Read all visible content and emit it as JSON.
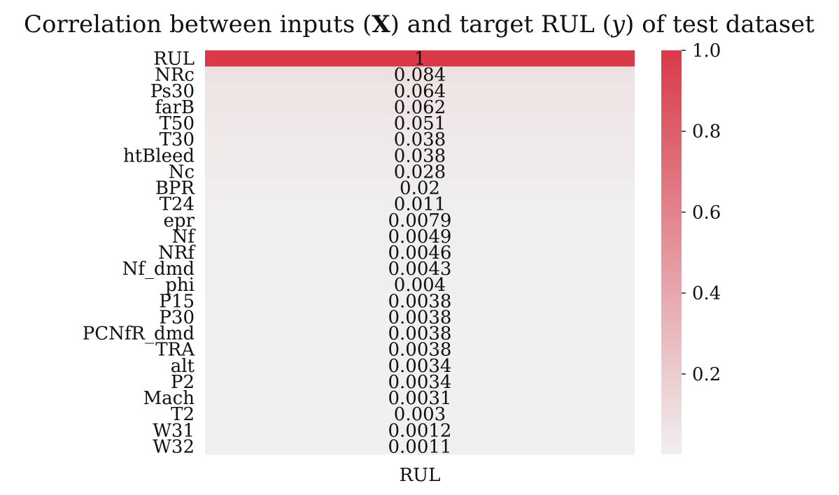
{
  "chart_data": {
    "type": "heatmap",
    "title_parts": [
      {
        "text": "Correlation between inputs (",
        "style": "normal"
      },
      {
        "text": "X",
        "style": "bold"
      },
      {
        "text": ") and target RUL (",
        "style": "normal"
      },
      {
        "text": "y",
        "style": "italic"
      },
      {
        "text": ") of test dataset",
        "style": "normal"
      }
    ],
    "columns": [
      "RUL"
    ],
    "rows": [
      "RUL",
      "NRc",
      "Ps30",
      "farB",
      "T50",
      "T30",
      "htBleed",
      "Nc",
      "BPR",
      "T24",
      "epr",
      "Nf",
      "NRf",
      "Nf_dmd",
      "phi",
      "P15",
      "P30",
      "PCNfR_dmd",
      "TRA",
      "alt",
      "P2",
      "Mach",
      "T2",
      "W31",
      "W32"
    ],
    "values": [
      1,
      0.084,
      0.064,
      0.062,
      0.051,
      0.038,
      0.038,
      0.028,
      0.02,
      0.011,
      0.0079,
      0.0049,
      0.0046,
      0.0043,
      0.004,
      0.0038,
      0.0038,
      0.0038,
      0.0038,
      0.0034,
      0.0034,
      0.0031,
      0.003,
      0.0012,
      0.0011
    ],
    "value_labels": [
      "1",
      "0.084",
      "0.064",
      "0.062",
      "0.051",
      "0.038",
      "0.038",
      "0.028",
      "0.02",
      "0.011",
      "0.0079",
      "0.0049",
      "0.0046",
      "0.0043",
      "0.004",
      "0.0038",
      "0.0038",
      "0.0038",
      "0.0038",
      "0.0034",
      "0.0034",
      "0.0031",
      "0.003",
      "0.0012",
      "0.0011"
    ],
    "colorbar": {
      "min": 0.0011,
      "max": 1.0,
      "ticks": [
        1.0,
        0.8,
        0.6,
        0.4,
        0.2
      ],
      "tick_labels": [
        "1.0",
        "0.8",
        "0.6",
        "0.4",
        "0.2"
      ],
      "low_color": "#f0f0f0",
      "high_color": "#d93a49"
    },
    "xlabel": "RUL"
  }
}
